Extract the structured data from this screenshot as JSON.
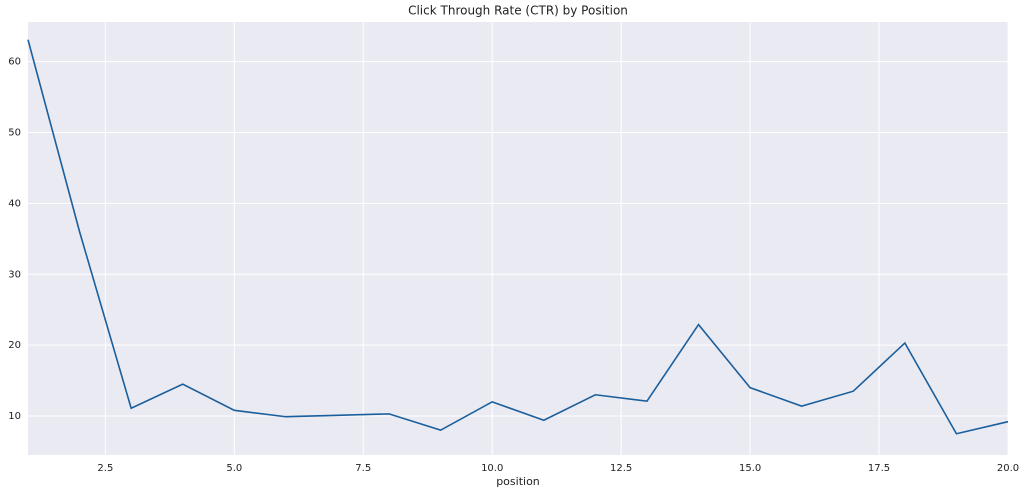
{
  "chart_data": {
    "type": "line",
    "title": "Click Through Rate (CTR) by Position",
    "x_label": "position",
    "x": [
      1,
      2,
      3,
      4,
      5,
      6,
      7,
      8,
      9,
      10,
      11,
      12,
      13,
      14,
      15,
      16,
      17,
      18,
      19,
      20
    ],
    "series": [
      {
        "color": "#1a5f9c",
        "values": [
          63.1,
          36.0,
          11.1,
          14.5,
          10.8,
          9.9,
          10.1,
          10.3,
          8.0,
          12.0,
          9.4,
          13.0,
          12.1,
          22.9,
          14.0,
          11.4,
          13.5,
          20.3,
          7.5,
          9.2
        ]
      }
    ],
    "xlim": [
      1,
      20
    ],
    "xticks": [
      2.5,
      {
        "value": 5,
        "label": "5.0"
      },
      7.5,
      {
        "value": 10,
        "label": "10.0"
      },
      12.5,
      {
        "value": 15,
        "label": "15.0"
      },
      17.5,
      {
        "value": 20,
        "label": "20.0"
      }
    ],
    "ylim": [
      4.5,
      65.6
    ],
    "yticks": [
      10,
      20,
      30,
      40,
      50,
      60
    ],
    "grid": true
  }
}
